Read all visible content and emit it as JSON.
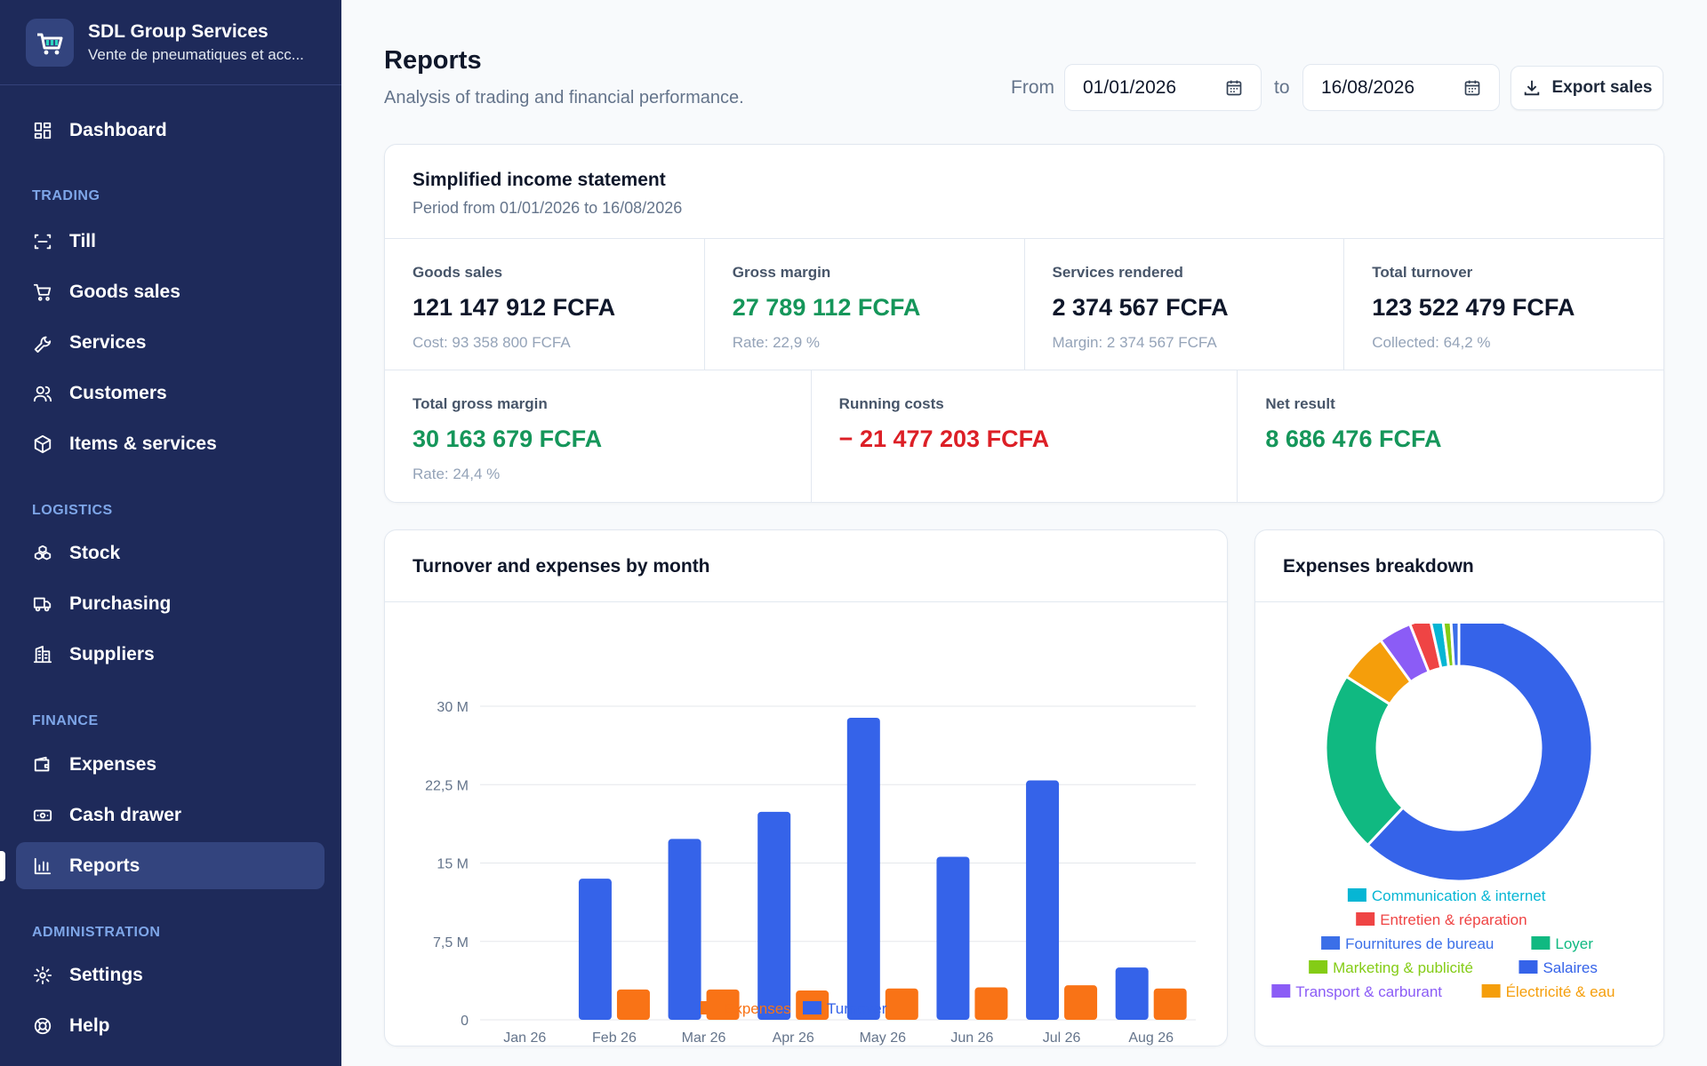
{
  "brand": {
    "name": "SDL Group Services",
    "subtitle": "Vente de pneumatiques et acc..."
  },
  "nav": {
    "dashboard": "Dashboard",
    "sections": {
      "trading": "TRADING",
      "logistics": "LOGISTICS",
      "finance": "FINANCE",
      "administration": "ADMINISTRATION"
    },
    "till": "Till",
    "goods_sales": "Goods sales",
    "services": "Services",
    "customers": "Customers",
    "items": "Items & services",
    "stock": "Stock",
    "purchasing": "Purchasing",
    "suppliers": "Suppliers",
    "expenses": "Expenses",
    "cash_drawer": "Cash drawer",
    "reports": "Reports",
    "settings": "Settings",
    "help": "Help",
    "active": "reports"
  },
  "header": {
    "title": "Reports",
    "subtitle": "Analysis of trading and financial performance.",
    "from_label": "From",
    "to_label": "to",
    "from_date": "01/01/2026",
    "to_date": "16/08/2026",
    "export_label": "Export sales"
  },
  "income": {
    "title": "Simplified income statement",
    "period": "Period from 01/01/2026 to 16/08/2026",
    "goods_sales": {
      "label": "Goods sales",
      "value": "121 147 912 FCFA",
      "note": "Cost: 93 358 800 FCFA"
    },
    "gross_margin": {
      "label": "Gross margin",
      "value": "27 789 112 FCFA",
      "note": "Rate: 22,9 %"
    },
    "services_rendered": {
      "label": "Services rendered",
      "value": "2 374 567 FCFA",
      "note": "Margin: 2 374 567 FCFA"
    },
    "total_turnover": {
      "label": "Total turnover",
      "value": "123 522 479 FCFA",
      "note": "Collected: 64,2 %"
    },
    "total_gross_margin": {
      "label": "Total gross margin",
      "value": "30 163 679 FCFA",
      "note": "Rate: 24,4 %"
    },
    "running_costs": {
      "label": "Running costs",
      "value": "− 21 477 203 FCFA"
    },
    "net_result": {
      "label": "Net result",
      "value": "8 686 476 FCFA"
    }
  },
  "colors": {
    "turnover": "#3563e9",
    "expenses": "#f97316",
    "positive": "#15965a",
    "negative": "#dc1f26",
    "sidebar": "#1e2a5a"
  },
  "chart_data": [
    {
      "type": "bar",
      "title": "Turnover and expenses by month",
      "categories": [
        "Jan 26",
        "Feb 26",
        "Mar 26",
        "Apr 26",
        "May 26",
        "Jun 26",
        "Jul 26",
        "Aug 26"
      ],
      "series": [
        {
          "name": "Turnover",
          "color": "#3563e9",
          "values": [
            0,
            13.5,
            17.3,
            19.9,
            28.9,
            15.6,
            22.9,
            5.0
          ]
        },
        {
          "name": "Expenses",
          "color": "#f97316",
          "values": [
            0,
            2.9,
            2.9,
            2.8,
            3.0,
            3.1,
            3.3,
            3.0
          ]
        }
      ],
      "yticks": [
        "0",
        "7,5 M",
        "15 M",
        "22,5 M",
        "30 M"
      ],
      "ylim": [
        0,
        30
      ],
      "legend": [
        "Expenses",
        "Turnover"
      ],
      "legend_position": "bottom",
      "grid": true
    },
    {
      "type": "pie",
      "title": "Expenses breakdown",
      "labels": [
        "Salaires",
        "Loyer",
        "Électricité & eau",
        "Transport & carburant",
        "Entretien & réparation",
        "Communication & internet",
        "Marketing & publicité",
        "Fournitures de bureau"
      ],
      "values": [
        62.0,
        22.0,
        6.0,
        4.0,
        2.5,
        1.5,
        1.0,
        1.0
      ],
      "colors": [
        "#3563e9",
        "#10b981",
        "#f59e0b",
        "#8b5cf6",
        "#ef4444",
        "#06b6d4",
        "#84cc16",
        "#3b6fe8"
      ],
      "legend_rows": [
        [
          "Communication & internet"
        ],
        [
          "Entretien & réparation"
        ],
        [
          "Fournitures de bureau",
          "Loyer"
        ],
        [
          "Marketing & publicité",
          "Salaires"
        ],
        [
          "Transport & carburant",
          "Électricité & eau"
        ]
      ],
      "donut": true
    }
  ]
}
